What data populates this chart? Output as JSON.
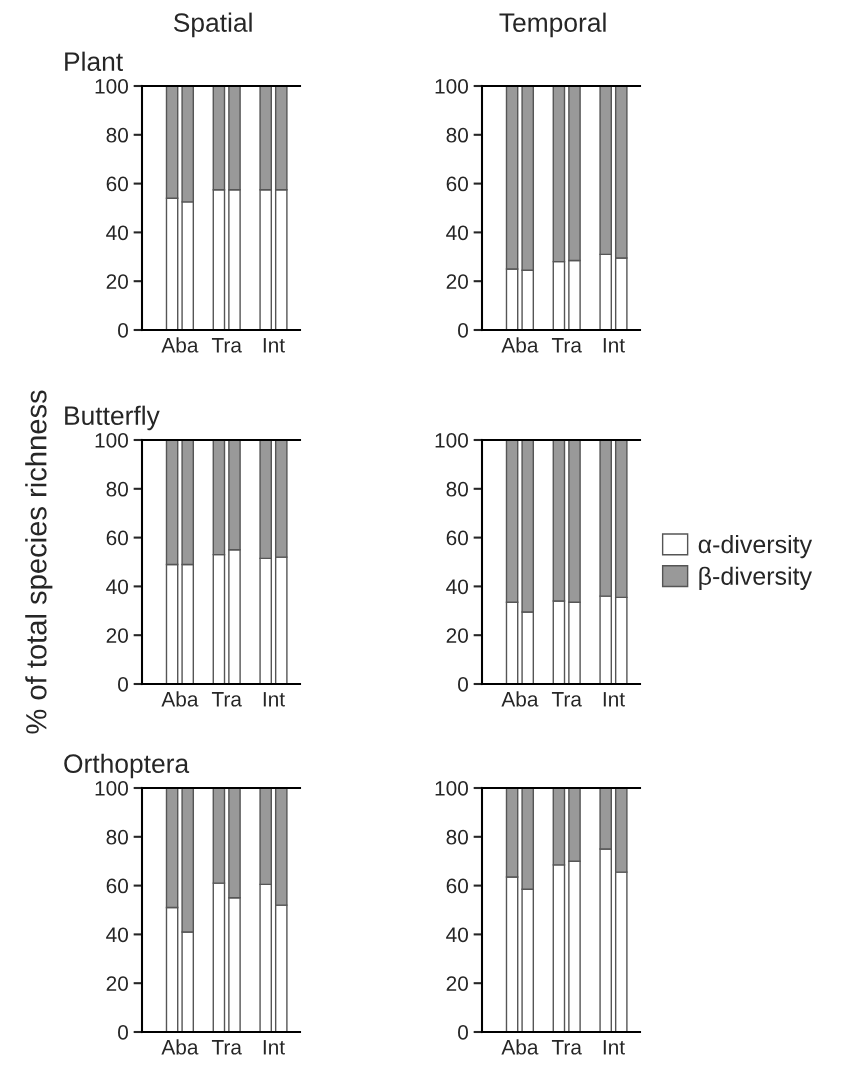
{
  "chart_data": [
    {
      "type": "bar",
      "stacked": true,
      "title": "Spatial",
      "subtitle": "Plant",
      "categories": [
        "Aba",
        null,
        null,
        "Tra",
        null,
        null,
        "Int",
        null
      ],
      "ylim": [
        0,
        100
      ],
      "yticks": [
        0,
        20,
        40,
        60,
        80,
        100
      ],
      "grid": false,
      "legend": false,
      "series": [
        {
          "color": "#ffffff",
          "values": [
            54,
            52.5,
            null,
            57.5,
            57.5,
            null,
            57.5,
            57.5
          ]
        },
        {
          "color": "#999999",
          "values": [
            46,
            47.5,
            null,
            42.5,
            42.5,
            null,
            42.5,
            42.5
          ]
        }
      ]
    },
    {
      "type": "bar",
      "stacked": true,
      "title": "Temporal",
      "categories": [
        "Aba",
        null,
        null,
        "Tra",
        null,
        null,
        "Int",
        null
      ],
      "ylim": [
        0,
        100
      ],
      "yticks": [
        0,
        20,
        40,
        60,
        80,
        100
      ],
      "grid": false,
      "legend": false,
      "series": [
        {
          "color": "#ffffff",
          "values": [
            25,
            24.5,
            null,
            28,
            28.5,
            null,
            31,
            29.5
          ]
        },
        {
          "color": "#999999",
          "values": [
            75,
            75.5,
            null,
            72,
            71.5,
            null,
            69,
            70.5
          ]
        }
      ]
    },
    {
      "type": "bar",
      "stacked": true,
      "subtitle": "Butterfly",
      "ylabel": "% of total species richness",
      "categories": [
        "Aba",
        null,
        null,
        "Tra",
        null,
        null,
        "Int",
        null
      ],
      "ylim": [
        0,
        100
      ],
      "yticks": [
        0,
        20,
        40,
        60,
        80,
        100
      ],
      "grid": false,
      "legend": false,
      "series": [
        {
          "color": "#ffffff",
          "values": [
            49,
            49,
            null,
            53,
            55,
            null,
            51.5,
            52
          ]
        },
        {
          "color": "#999999",
          "values": [
            51,
            51,
            null,
            47,
            45,
            null,
            48.5,
            48
          ]
        }
      ]
    },
    {
      "type": "bar",
      "stacked": true,
      "categories": [
        "Aba",
        null,
        null,
        "Tra",
        null,
        null,
        "Int",
        null
      ],
      "ylim": [
        0,
        100
      ],
      "yticks": [
        0,
        20,
        40,
        60,
        80,
        100
      ],
      "grid": false,
      "legend": "right",
      "series": [
        {
          "name": "α-diversity",
          "color": "#ffffff",
          "values": [
            33.5,
            29.5,
            null,
            34,
            33.5,
            null,
            36,
            35.5
          ]
        },
        {
          "name": "β-diversity",
          "color": "#999999",
          "values": [
            66.5,
            70.5,
            null,
            66,
            66.5,
            null,
            64,
            64.5
          ]
        }
      ]
    },
    {
      "type": "bar",
      "stacked": true,
      "subtitle": "Orthoptera",
      "categories": [
        "Aba",
        null,
        null,
        "Tra",
        null,
        null,
        "Int",
        null
      ],
      "ylim": [
        0,
        100
      ],
      "yticks": [
        0,
        20,
        40,
        60,
        80,
        100
      ],
      "grid": false,
      "legend": false,
      "series": [
        {
          "color": "#ffffff",
          "values": [
            51,
            41,
            null,
            61,
            55,
            null,
            60.5,
            52
          ]
        },
        {
          "color": "#999999",
          "values": [
            49,
            59,
            null,
            39,
            45,
            null,
            39.5,
            48
          ]
        }
      ]
    },
    {
      "type": "bar",
      "stacked": true,
      "categories": [
        "Aba",
        null,
        null,
        "Tra",
        null,
        null,
        "Int",
        null
      ],
      "ylim": [
        0,
        100
      ],
      "yticks": [
        0,
        20,
        40,
        60,
        80,
        100
      ],
      "grid": false,
      "legend": false,
      "series": [
        {
          "color": "#ffffff",
          "values": [
            63.5,
            58.5,
            null,
            68.5,
            70,
            null,
            75,
            65.5
          ]
        },
        {
          "color": "#999999",
          "values": [
            36.5,
            41.5,
            null,
            31.5,
            30,
            null,
            25,
            34.5
          ]
        }
      ]
    }
  ]
}
